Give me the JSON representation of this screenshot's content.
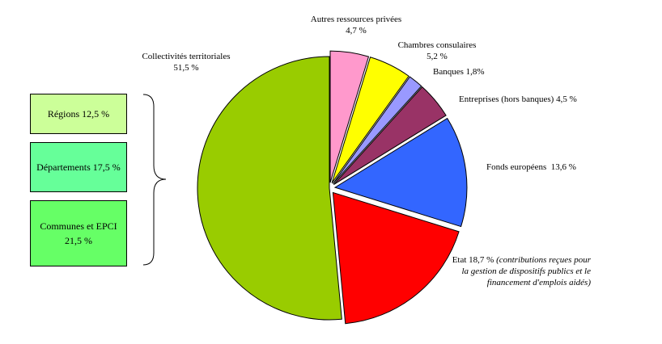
{
  "chart_data": {
    "type": "pie",
    "slices": [
      {
        "label": "Collectivités territoriales",
        "value": 51.5,
        "value_label": "51,5 %",
        "color": "#99cc00"
      },
      {
        "label": "Autres ressources privées",
        "value": 4.7,
        "value_label": "4,7 %",
        "color": "#ff99cc"
      },
      {
        "label": "Chambres consulaires",
        "value": 5.2,
        "value_label": "5,2 %",
        "color": "#ffff00"
      },
      {
        "label": "Banques",
        "value": 1.8,
        "value_label": "1,8%",
        "color": "#9999ff"
      },
      {
        "label": "Entreprises (hors banques)",
        "value": 4.5,
        "value_label": "4,5 %",
        "color": "#993366"
      },
      {
        "label": "Fonds européens",
        "value": 13.6,
        "value_label": "13,6 %",
        "color": "#3366ff"
      },
      {
        "label": "Etat",
        "value": 18.7,
        "value_label": "18,7 %",
        "color": "#ff0000",
        "note": "(contributions reçues pour la gestion de dispositifs publics et le financement d'emplois aidés)"
      }
    ],
    "breakdown": {
      "parent": "Collectivités territoriales",
      "items": [
        {
          "label": "Régions 12,5 %",
          "color": "#ccff99"
        },
        {
          "label": "Départements 17,5 %",
          "color": "#66ff99"
        },
        {
          "label": "Communes et EPCI",
          "value_label": "21,5 %",
          "color": "#66ff66"
        }
      ]
    }
  }
}
